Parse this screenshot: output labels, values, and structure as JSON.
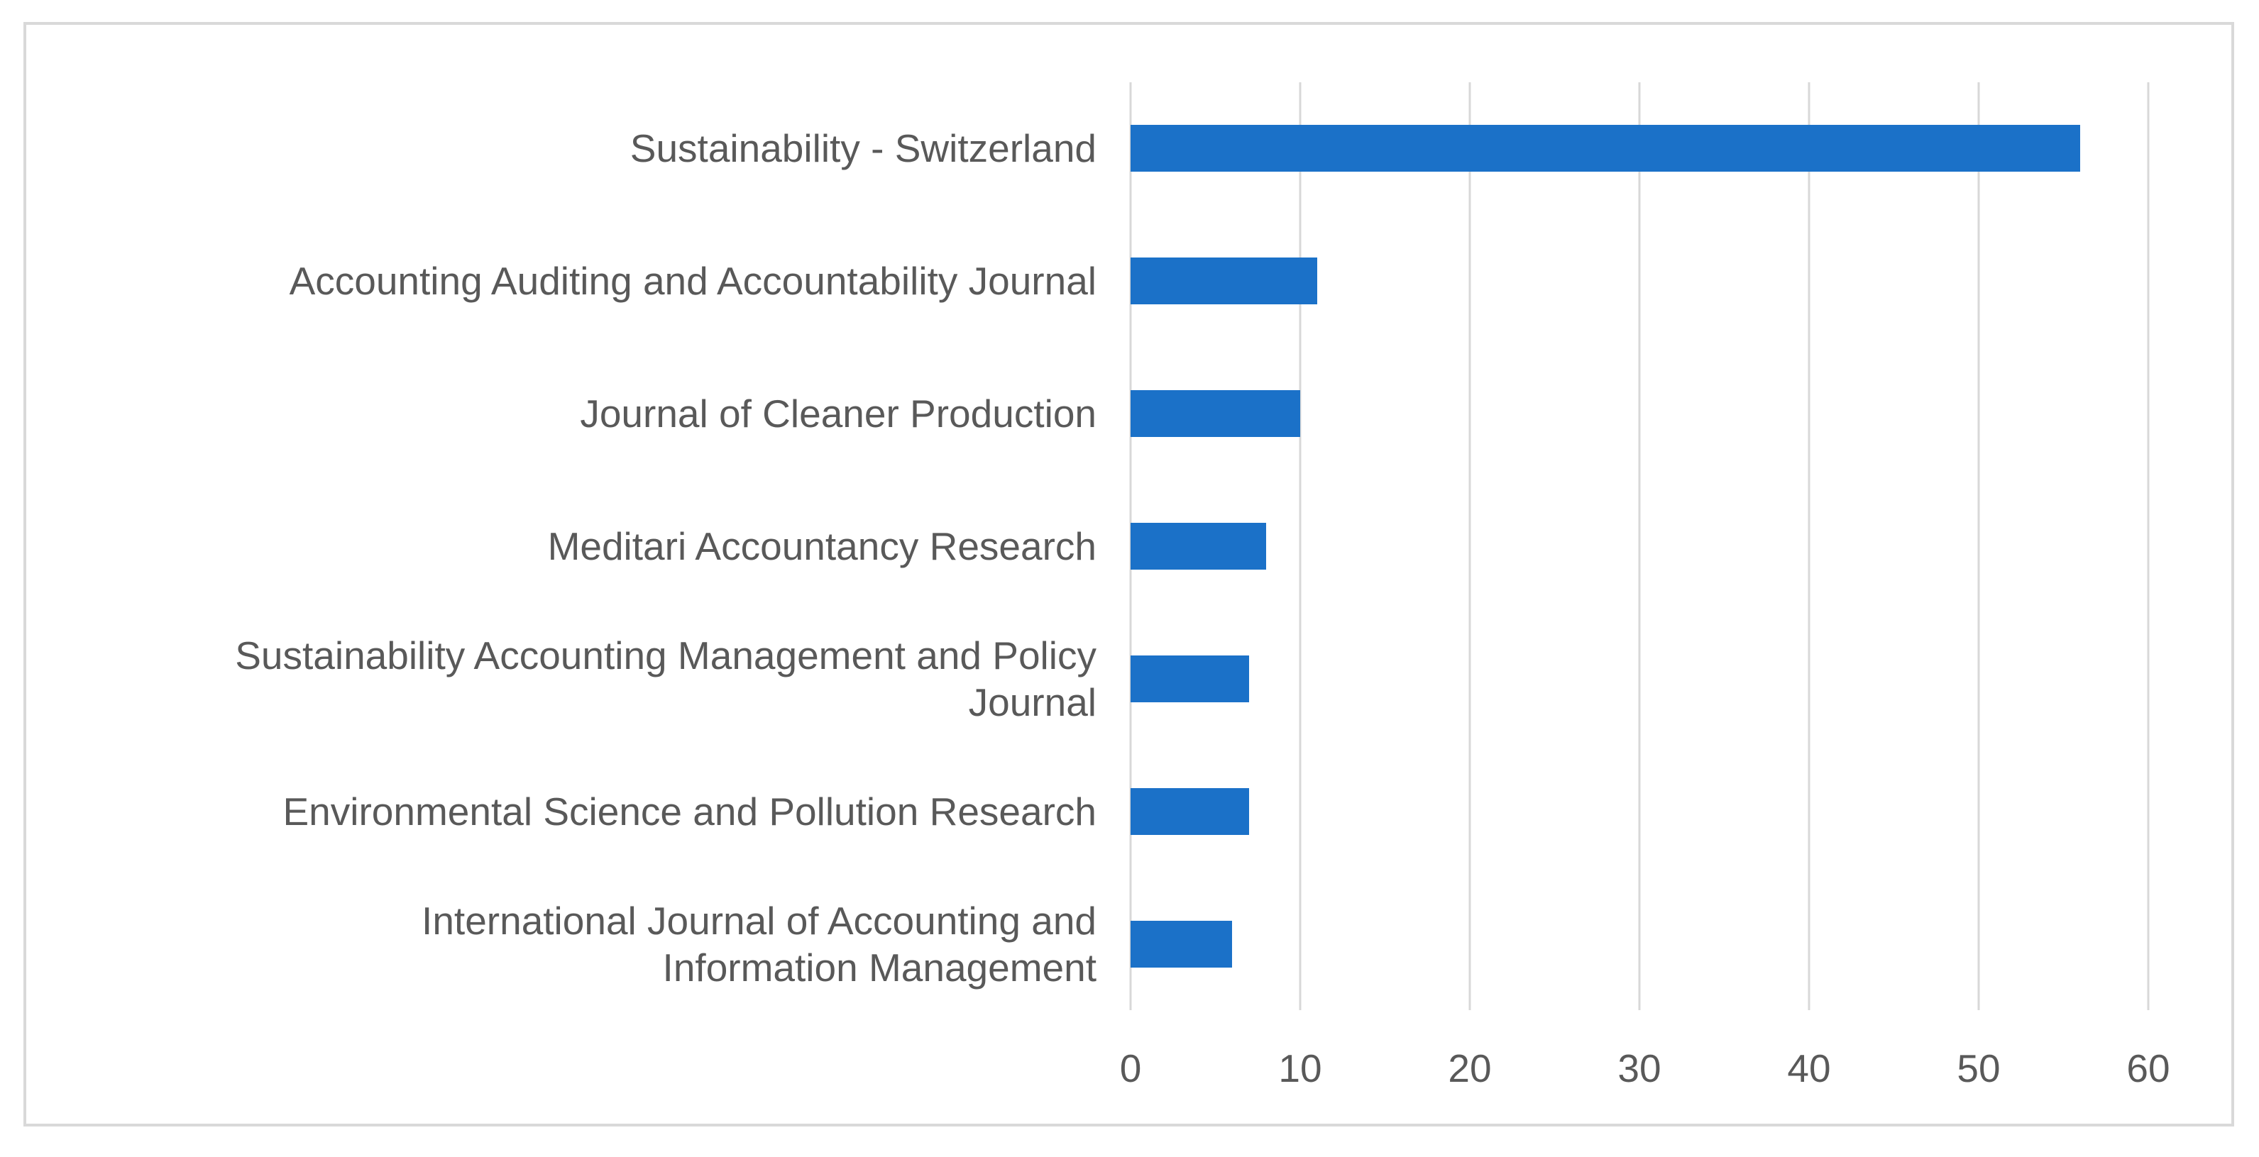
{
  "chart_data": {
    "type": "bar",
    "orientation": "horizontal",
    "title": "",
    "xlabel": "",
    "ylabel": "",
    "categories": [
      "Sustainability - Switzerland",
      "Accounting Auditing and Accountability Journal",
      "Journal of Cleaner Production",
      "Meditari Accountancy Research",
      "Sustainability Accounting Management and Policy Journal",
      "Environmental Science and Pollution Research",
      "International Journal of Accounting and Information Management"
    ],
    "display_labels": [
      "Sustainability - Switzerland",
      "Accounting Auditing and Accountability Journal",
      "Journal of Cleaner Production",
      "Meditari Accountancy Research",
      "Sustainability Accounting Management and Policy\nJournal",
      "Environmental Science and Pollution Research",
      "International Journal of Accounting and\nInformation Management"
    ],
    "values": [
      56,
      11,
      10,
      8,
      7,
      7,
      6
    ],
    "xlim": [
      0,
      60
    ],
    "xticks": [
      0,
      10,
      20,
      30,
      40,
      50,
      60
    ],
    "grid": true,
    "legend": false,
    "colors": {
      "bar": "#1b71c8",
      "gridline": "#d8d8d8",
      "text": "#595959",
      "frame_border": "#d9d9d9",
      "background": "#ffffff"
    }
  }
}
